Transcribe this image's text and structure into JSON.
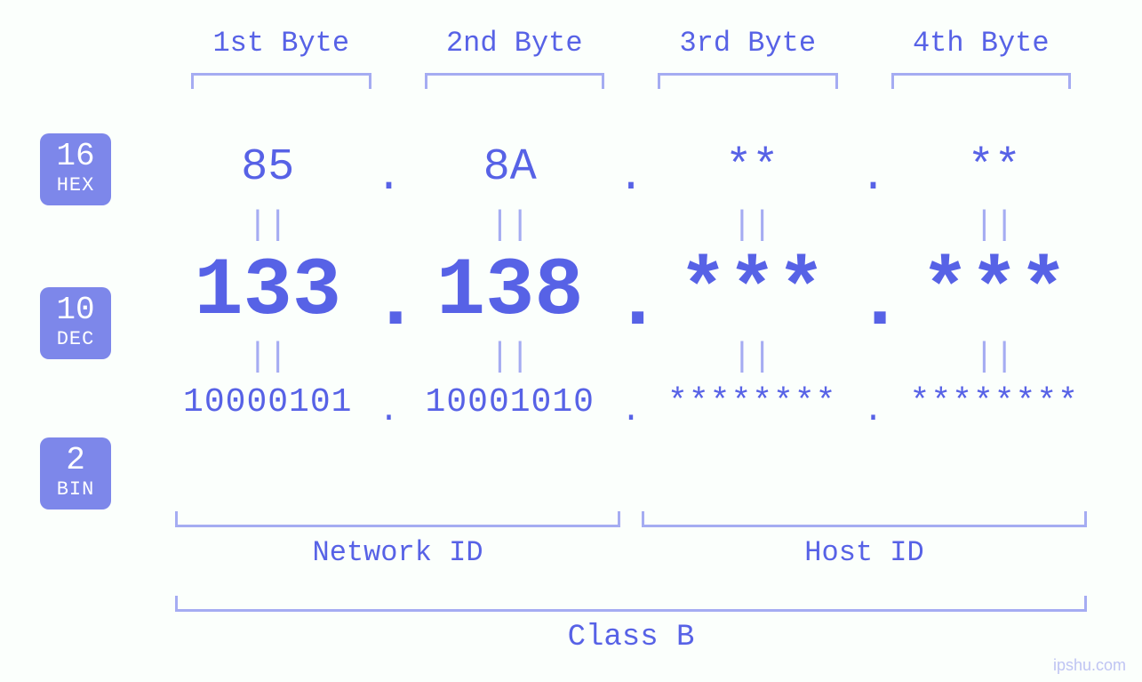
{
  "colors": {
    "background": "#fbfffc",
    "accent": "#5762e6",
    "light": "#a5acf2",
    "badge_bg": "#7d87ea",
    "badge_fg": "#ffffff"
  },
  "byte_labels": [
    "1st Byte",
    "2nd Byte",
    "3rd Byte",
    "4th Byte"
  ],
  "badges": {
    "hex": {
      "base": "16",
      "name": "HEX"
    },
    "dec": {
      "base": "10",
      "name": "DEC"
    },
    "bin": {
      "base": "2",
      "name": "BIN"
    }
  },
  "sep": ".",
  "eq": "||",
  "hex": [
    "85",
    "8A",
    "**",
    "**"
  ],
  "dec": [
    "133",
    "138",
    "***",
    "***"
  ],
  "bin": [
    "10000101",
    "10001010",
    "********",
    "********"
  ],
  "bottom": {
    "network": "Network ID",
    "host": "Host ID",
    "class": "Class B"
  },
  "watermark": "ipshu.com",
  "fonts": {
    "byte_label_size": 32,
    "hex_size": 50,
    "dec_size": 92,
    "bin_size": 38,
    "eq_size": 38,
    "badge_num_size": 36,
    "badge_txt_size": 22,
    "bottom_label_size": 32,
    "class_label_size": 34
  }
}
